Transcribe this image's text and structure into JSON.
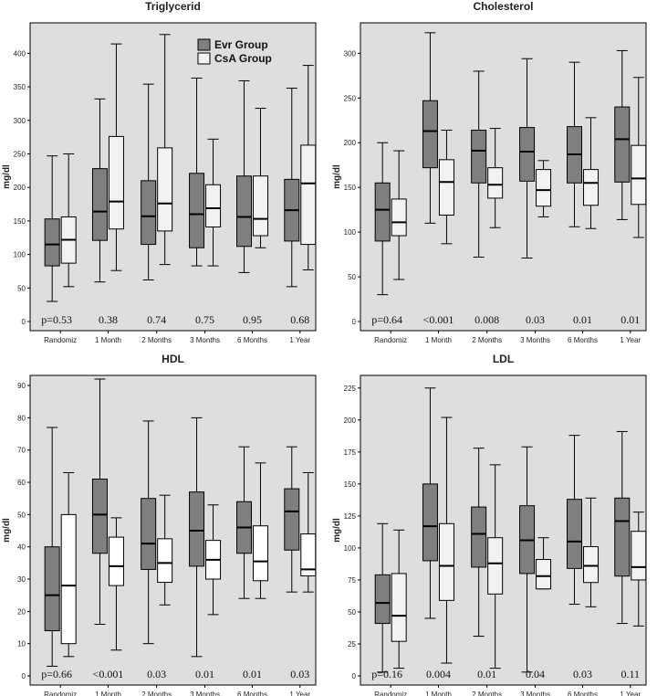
{
  "chart_data": [
    {
      "type": "boxplot",
      "title": "Triglycerid",
      "ylabel": "mg/dl",
      "ylim": [
        0,
        440
      ],
      "yticks": [
        0,
        50,
        100,
        150,
        200,
        250,
        300,
        350,
        400
      ],
      "categories": [
        "Randomiz",
        "1 Month",
        "2 Months",
        "3 Months",
        "6 Months",
        "1 Year"
      ],
      "p_values": [
        "p=0.53",
        "0.38",
        "0.74",
        "0.75",
        "0.95",
        "0.68"
      ],
      "legend": {
        "placement": "top-center",
        "entries": [
          "Evr Group",
          "CsA Group"
        ]
      },
      "series": [
        {
          "name": "Evr Group",
          "color": "#7f7f7f",
          "boxes": [
            {
              "min": 30,
              "q1": 83,
              "median": 115,
              "q3": 153,
              "max": 247
            },
            {
              "min": 59,
              "q1": 121,
              "median": 164,
              "q3": 228,
              "max": 332
            },
            {
              "min": 62,
              "q1": 115,
              "median": 157,
              "q3": 210,
              "max": 354
            },
            {
              "min": 83,
              "q1": 110,
              "median": 160,
              "q3": 221,
              "max": 363
            },
            {
              "min": 73,
              "q1": 112,
              "median": 156,
              "q3": 217,
              "max": 359
            },
            {
              "min": 52,
              "q1": 120,
              "median": 166,
              "q3": 212,
              "max": 348
            }
          ]
        },
        {
          "name": "CsA Group",
          "color": "#f2f2f2",
          "boxes": [
            {
              "min": 52,
              "q1": 87,
              "median": 122,
              "q3": 156,
              "max": 250
            },
            {
              "min": 76,
              "q1": 138,
              "median": 179,
              "q3": 276,
              "max": 414
            },
            {
              "min": 85,
              "q1": 135,
              "median": 176,
              "q3": 259,
              "max": 428
            },
            {
              "min": 83,
              "q1": 141,
              "median": 169,
              "q3": 204,
              "max": 272
            },
            {
              "min": 110,
              "q1": 128,
              "median": 153,
              "q3": 217,
              "max": 318
            },
            {
              "min": 77,
              "q1": 115,
              "median": 206,
              "q3": 263,
              "max": 382
            }
          ]
        }
      ]
    },
    {
      "type": "boxplot",
      "title": "Cholesterol",
      "ylabel": "mg/dl",
      "ylim": [
        0,
        330
      ],
      "yticks": [
        0,
        50,
        100,
        150,
        200,
        250,
        300
      ],
      "categories": [
        "Randomiz",
        "1 Month",
        "2 Months",
        "3 Months",
        "6 Months",
        "1 Year"
      ],
      "p_values": [
        "p=0.64",
        "<0.001",
        "0.008",
        "0.03",
        "0.01",
        "0.01"
      ],
      "series": [
        {
          "name": "Evr Group",
          "color": "#7f7f7f",
          "boxes": [
            {
              "min": 30,
              "q1": 90,
              "median": 125,
              "q3": 155,
              "max": 200
            },
            {
              "min": 110,
              "q1": 172,
              "median": 213,
              "q3": 247,
              "max": 323
            },
            {
              "min": 72,
              "q1": 155,
              "median": 191,
              "q3": 214,
              "max": 280
            },
            {
              "min": 71,
              "q1": 157,
              "median": 190,
              "q3": 217,
              "max": 294
            },
            {
              "min": 106,
              "q1": 155,
              "median": 187,
              "q3": 218,
              "max": 290
            },
            {
              "min": 114,
              "q1": 156,
              "median": 204,
              "q3": 240,
              "max": 303
            }
          ]
        },
        {
          "name": "CsA Group",
          "color": "#f2f2f2",
          "boxes": [
            {
              "min": 47,
              "q1": 96,
              "median": 111,
              "q3": 137,
              "max": 191
            },
            {
              "min": 87,
              "q1": 119,
              "median": 156,
              "q3": 181,
              "max": 214
            },
            {
              "min": 105,
              "q1": 138,
              "median": 153,
              "q3": 172,
              "max": 216
            },
            {
              "min": 117,
              "q1": 129,
              "median": 147,
              "q3": 170,
              "max": 180
            },
            {
              "min": 104,
              "q1": 130,
              "median": 155,
              "q3": 170,
              "max": 228
            },
            {
              "min": 94,
              "q1": 131,
              "median": 160,
              "q3": 197,
              "max": 273
            }
          ]
        }
      ]
    },
    {
      "type": "boxplot",
      "title": "HDL",
      "ylabel": "mg/dl",
      "ylim": [
        0,
        92
      ],
      "yticks": [
        0,
        10,
        20,
        30,
        40,
        50,
        60,
        70,
        80,
        90
      ],
      "categories": [
        "Randomiz",
        "1 Month",
        "2 Months",
        "3 Months",
        "6 Months",
        "1 Year"
      ],
      "p_values": [
        "p=0.66",
        "<0.001",
        "0.03",
        "0.01",
        "0.01",
        "0.03"
      ],
      "series": [
        {
          "name": "Evr Group",
          "color": "#7f7f7f",
          "boxes": [
            {
              "min": 3,
              "q1": 14,
              "median": 25,
              "q3": 40,
              "max": 77
            },
            {
              "min": 16,
              "q1": 38,
              "median": 50,
              "q3": 61,
              "max": 92
            },
            {
              "min": 10,
              "q1": 33,
              "median": 41,
              "q3": 55,
              "max": 79
            },
            {
              "min": 6,
              "q1": 34,
              "median": 45,
              "q3": 57,
              "max": 80
            },
            {
              "min": 24,
              "q1": 38,
              "median": 46,
              "q3": 54,
              "max": 71
            },
            {
              "min": 26,
              "q1": 39,
              "median": 51,
              "q3": 58,
              "max": 71
            }
          ]
        },
        {
          "name": "CsA Group",
          "color": "#ffffff",
          "boxes": [
            {
              "min": 6,
              "q1": 10,
              "median": 28,
              "q3": 50,
              "max": 63
            },
            {
              "min": 8,
              "q1": 28,
              "median": 34,
              "q3": 43,
              "max": 49
            },
            {
              "min": 22,
              "q1": 29,
              "median": 35,
              "q3": 42.5,
              "max": 56
            },
            {
              "min": 19,
              "q1": 30,
              "median": 36,
              "q3": 42,
              "max": 53
            },
            {
              "min": 24,
              "q1": 29.5,
              "median": 35.5,
              "q3": 46.5,
              "max": 66
            },
            {
              "min": 26,
              "q1": 31,
              "median": 33,
              "q3": 44,
              "max": 63
            }
          ]
        }
      ]
    },
    {
      "type": "boxplot",
      "title": "LDL",
      "ylabel": "mg/dl",
      "ylim": [
        0,
        232
      ],
      "yticks": [
        0,
        25,
        50,
        75,
        100,
        125,
        150,
        175,
        200,
        225
      ],
      "categories": [
        "Randomiz",
        "1 Month",
        "2 Months",
        "3 Months",
        "6 Months",
        "1 Year"
      ],
      "p_values": [
        "p=0.16",
        "0.004",
        "0.01",
        "0.04",
        "0.03",
        "0.11"
      ],
      "series": [
        {
          "name": "Evr Group",
          "color": "#7f7f7f",
          "boxes": [
            {
              "min": 3,
              "q1": 41,
              "median": 57,
              "q3": 79,
              "max": 119
            },
            {
              "min": 45,
              "q1": 90,
              "median": 117,
              "q3": 150,
              "max": 225
            },
            {
              "min": 31,
              "q1": 85,
              "median": 111,
              "q3": 132,
              "max": 178
            },
            {
              "min": 3,
              "q1": 80,
              "median": 106,
              "q3": 133,
              "max": 179
            },
            {
              "min": 56,
              "q1": 84,
              "median": 105,
              "q3": 138,
              "max": 188
            },
            {
              "min": 41,
              "q1": 78,
              "median": 121,
              "q3": 139,
              "max": 191
            }
          ]
        },
        {
          "name": "CsA Group",
          "color": "#f2f2f2",
          "boxes": [
            {
              "min": 6,
              "q1": 27,
              "median": 47,
              "q3": 80,
              "max": 114
            },
            {
              "min": 10,
              "q1": 59,
              "median": 86,
              "q3": 119,
              "max": 202
            },
            {
              "min": 6,
              "q1": 64,
              "median": 88,
              "q3": 108,
              "max": 165
            },
            {
              "min": 68,
              "q1": 68,
              "median": 78,
              "q3": 91,
              "max": 108
            },
            {
              "min": 54,
              "q1": 73,
              "median": 86,
              "q3": 101,
              "max": 139
            },
            {
              "min": 39,
              "q1": 75,
              "median": 85,
              "q3": 113,
              "max": 128
            }
          ]
        }
      ]
    }
  ]
}
